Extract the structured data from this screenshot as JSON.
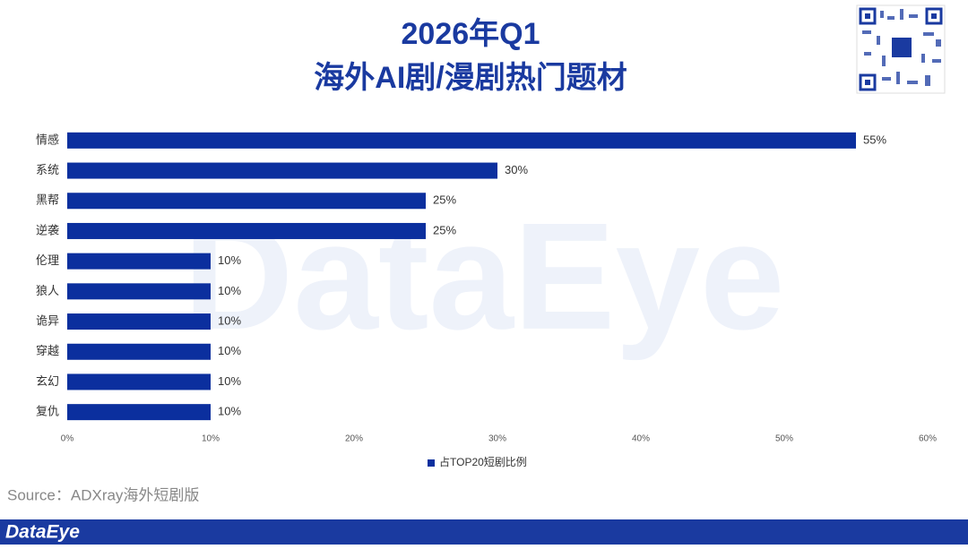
{
  "chart_data": {
    "type": "bar",
    "orientation": "horizontal",
    "title": "2026年Q1",
    "subtitle": "海外AI剧/漫剧热门题材",
    "categories": [
      "情感",
      "系统",
      "黑帮",
      "逆袭",
      "伦理",
      "狼人",
      "诡异",
      "穿越",
      "玄幻",
      "复仇"
    ],
    "series": [
      {
        "name": "占TOP20短剧比例",
        "color": "#0b2f9e",
        "values": [
          55,
          30,
          25,
          25,
          10,
          10,
          10,
          10,
          10,
          10
        ],
        "value_labels": [
          "55%",
          "30%",
          "25%",
          "25%",
          "10%",
          "10%",
          "10%",
          "10%",
          "10%",
          "10%"
        ]
      }
    ],
    "xlim": [
      0,
      60
    ],
    "xticks": [
      {
        "value": 0,
        "label": "0%"
      },
      {
        "value": 10,
        "label": "10%"
      },
      {
        "value": 20,
        "label": "20%"
      },
      {
        "value": 30,
        "label": "30%"
      },
      {
        "value": 40,
        "label": "40%"
      },
      {
        "value": 50,
        "label": "50%"
      },
      {
        "value": 60,
        "label": "60%"
      }
    ],
    "grid": false,
    "legend": "bottom",
    "source": "Source：ADXray海外短剧版"
  },
  "page": {
    "watermark": "DataEye",
    "footer_logo": "DataEye"
  }
}
